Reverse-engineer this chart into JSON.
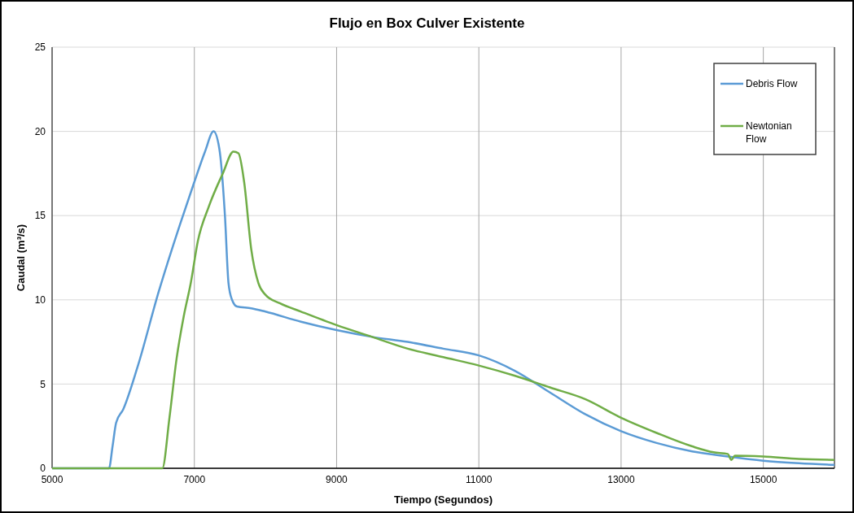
{
  "chart_data": {
    "type": "line",
    "title": "Flujo en Box Culver Existente",
    "xlabel": "Tiempo (Segundos)",
    "ylabel": "Caudal (m³/s)",
    "xlim": [
      5000,
      16000
    ],
    "xticks": [
      5000,
      7000,
      9000,
      11000,
      13000,
      15000
    ],
    "ylim": [
      0,
      25
    ],
    "yticks": [
      0,
      5,
      10,
      15,
      20,
      25
    ],
    "grid": true,
    "legend": "top right",
    "series": [
      {
        "name": "Debris Flow",
        "color": "#5b9bd5",
        "x": [
          5000,
          5800,
          5850,
          5900,
          6000,
          6200,
          6500,
          6800,
          7000,
          7150,
          7270,
          7350,
          7430,
          7480,
          7530,
          7600,
          7800,
          8000,
          8500,
          9000,
          9500,
          10000,
          10500,
          11000,
          11500,
          12000,
          12500,
          13000,
          13500,
          14000,
          14500,
          15000,
          15500,
          16000
        ],
        "values": [
          0,
          0,
          1.3,
          2.7,
          3.5,
          6,
          10.5,
          14.5,
          17,
          18.8,
          20,
          19,
          15,
          11,
          10,
          9.6,
          9.5,
          9.3,
          8.7,
          8.2,
          7.8,
          7.5,
          7.1,
          6.7,
          5.8,
          4.5,
          3.2,
          2.2,
          1.5,
          1.0,
          0.7,
          0.45,
          0.3,
          0.2
        ]
      },
      {
        "name": "Newtonian Flow",
        "color": "#70ad47",
        "x": [
          5000,
          6550,
          6650,
          6750,
          6850,
          6950,
          7050,
          7200,
          7400,
          7550,
          7620,
          7700,
          7800,
          7900,
          8000,
          8200,
          8500,
          9000,
          9500,
          10000,
          10500,
          11000,
          11500,
          12000,
          12500,
          13000,
          13500,
          14000,
          14300,
          14500,
          14550,
          14600,
          15000,
          15500,
          16000
        ],
        "values": [
          0,
          0,
          3,
          6.5,
          9,
          11,
          13.5,
          15.5,
          17.5,
          18.8,
          18.7,
          17,
          13,
          11,
          10.3,
          9.8,
          9.3,
          8.5,
          7.8,
          7.1,
          6.6,
          6.1,
          5.5,
          4.8,
          4.1,
          3.0,
          2.1,
          1.3,
          0.95,
          0.85,
          0.5,
          0.75,
          0.7,
          0.55,
          0.5
        ]
      }
    ]
  }
}
